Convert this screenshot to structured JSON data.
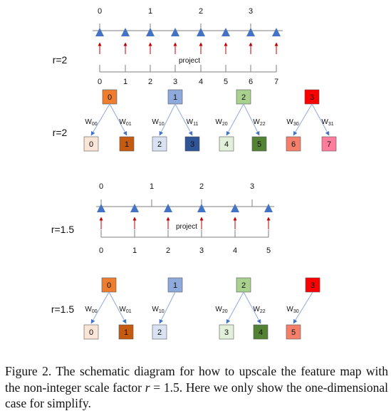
{
  "panel_a": {
    "r_label_1": "r=2",
    "r_label_2": "r=2",
    "input_ticks": [
      "0",
      "1",
      "2",
      "3"
    ],
    "output_ticks": [
      "0",
      "1",
      "2",
      "3",
      "4",
      "5",
      "6",
      "7"
    ],
    "project_label": "project",
    "parents": [
      {
        "label": "0",
        "color": "#ED7D31"
      },
      {
        "label": "1",
        "color": "#8EA9DB"
      },
      {
        "label": "2",
        "color": "#A9D18E"
      },
      {
        "label": "3",
        "color": "#FF0000"
      }
    ],
    "children": [
      {
        "label": "0",
        "color": "#FBE5D6"
      },
      {
        "label": "1",
        "color": "#C55A11"
      },
      {
        "label": "2",
        "color": "#DAE3F3"
      },
      {
        "label": "3",
        "color": "#2F5597"
      },
      {
        "label": "4",
        "color": "#E2F0D9"
      },
      {
        "label": "5",
        "color": "#548235"
      },
      {
        "label": "6",
        "color": "#F4806C"
      },
      {
        "label": "7",
        "color": "#FF7C9C"
      }
    ],
    "weights": [
      {
        "l": "W",
        "s": "00"
      },
      {
        "l": "W",
        "s": "01"
      },
      {
        "l": "W",
        "s": "10"
      },
      {
        "l": "W",
        "s": "11"
      },
      {
        "l": "W",
        "s": "20"
      },
      {
        "l": "W",
        "s": "22"
      },
      {
        "l": "W",
        "s": "30"
      },
      {
        "l": "W",
        "s": "31"
      }
    ]
  },
  "panel_b": {
    "r_label_1": "r=1.5",
    "r_label_2": "r=1.5",
    "input_ticks": [
      "0",
      "1",
      "2",
      "3"
    ],
    "output_ticks": [
      "0",
      "1",
      "2",
      "3",
      "4",
      "5"
    ],
    "project_label": "project",
    "parents": [
      {
        "label": "0",
        "color": "#ED7D31"
      },
      {
        "label": "1",
        "color": "#8EA9DB"
      },
      {
        "label": "2",
        "color": "#A9D18E"
      },
      {
        "label": "3",
        "color": "#FF0000"
      }
    ],
    "children": [
      {
        "label": "0",
        "color": "#FBE5D6"
      },
      {
        "label": "1",
        "color": "#C55A11"
      },
      {
        "label": "2",
        "color": "#DAE3F3"
      },
      {
        "label": "3",
        "color": "#E2F0D9"
      },
      {
        "label": "4",
        "color": "#548235"
      },
      {
        "label": "5",
        "color": "#F4806C"
      }
    ],
    "weights": [
      {
        "l": "W",
        "s": "00"
      },
      {
        "l": "W",
        "s": "01"
      },
      {
        "l": "W",
        "s": "10"
      },
      {
        "l": "W",
        "s": "20"
      },
      {
        "l": "W",
        "s": "22"
      },
      {
        "l": "W",
        "s": "30"
      }
    ]
  },
  "caption": {
    "prefix": "Figure 2. The schematic diagram for how to upscale the feature map with the non-integer scale factor ",
    "var": "r",
    "eq": " = 1.5",
    "suffix": ". Here we only show the one-dimensional case for simplify."
  },
  "colors": {
    "triangle": "#4472C4",
    "arrow_red": "#C00000",
    "edge": "#8FAADC",
    "axis": "#7F7F7F"
  }
}
